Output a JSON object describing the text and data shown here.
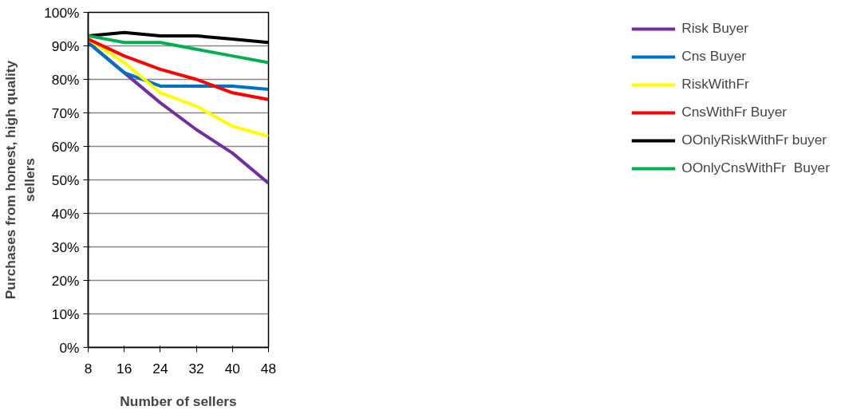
{
  "chart_data": {
    "type": "line",
    "xlabel": "Number of sellers",
    "ylabel": "Purchases from honest, high quality\nsellers",
    "x": [
      8,
      16,
      24,
      32,
      40,
      48
    ],
    "xlim": [
      8,
      48
    ],
    "xticks": [
      8,
      16,
      24,
      32,
      40,
      48
    ],
    "ylim": [
      0,
      100
    ],
    "yticks": [
      {
        "value": 0,
        "label": "0%"
      },
      {
        "value": 10,
        "label": "10%"
      },
      {
        "value": 20,
        "label": "20%"
      },
      {
        "value": 30,
        "label": "30%"
      },
      {
        "value": 40,
        "label": "40%"
      },
      {
        "value": 50,
        "label": "50%"
      },
      {
        "value": 60,
        "label": "60%"
      },
      {
        "value": 70,
        "label": "70%"
      },
      {
        "value": 80,
        "label": "80%"
      },
      {
        "value": 90,
        "label": "90%"
      },
      {
        "value": 100,
        "label": "100%"
      }
    ],
    "grid": "y",
    "legend": "right",
    "marker": "none",
    "line_style": "solid",
    "series": [
      {
        "name": "Risk Buyer",
        "color": "#7030a0",
        "values": [
          91,
          82,
          73,
          65,
          58,
          49
        ]
      },
      {
        "name": "Cns Buyer",
        "color": "#0070c0",
        "values": [
          91,
          82,
          78,
          78,
          78,
          77
        ]
      },
      {
        "name": "RiskWithFr",
        "color": "#ffff00",
        "values": [
          92,
          85,
          76,
          72,
          66,
          63
        ]
      },
      {
        "name": "CnsWithFr Buyer",
        "color": "#ff0000",
        "values": [
          92,
          87,
          83,
          80,
          76,
          74
        ]
      },
      {
        "name": "OOnlyRiskWithFr buyer",
        "color": "#000000",
        "values": [
          93,
          94,
          93,
          93,
          92,
          91
        ]
      },
      {
        "name": "OOnlyCnsWithFr  Buyer",
        "color": "#00b050",
        "values": [
          93,
          91,
          91,
          89,
          87,
          85
        ]
      }
    ]
  }
}
